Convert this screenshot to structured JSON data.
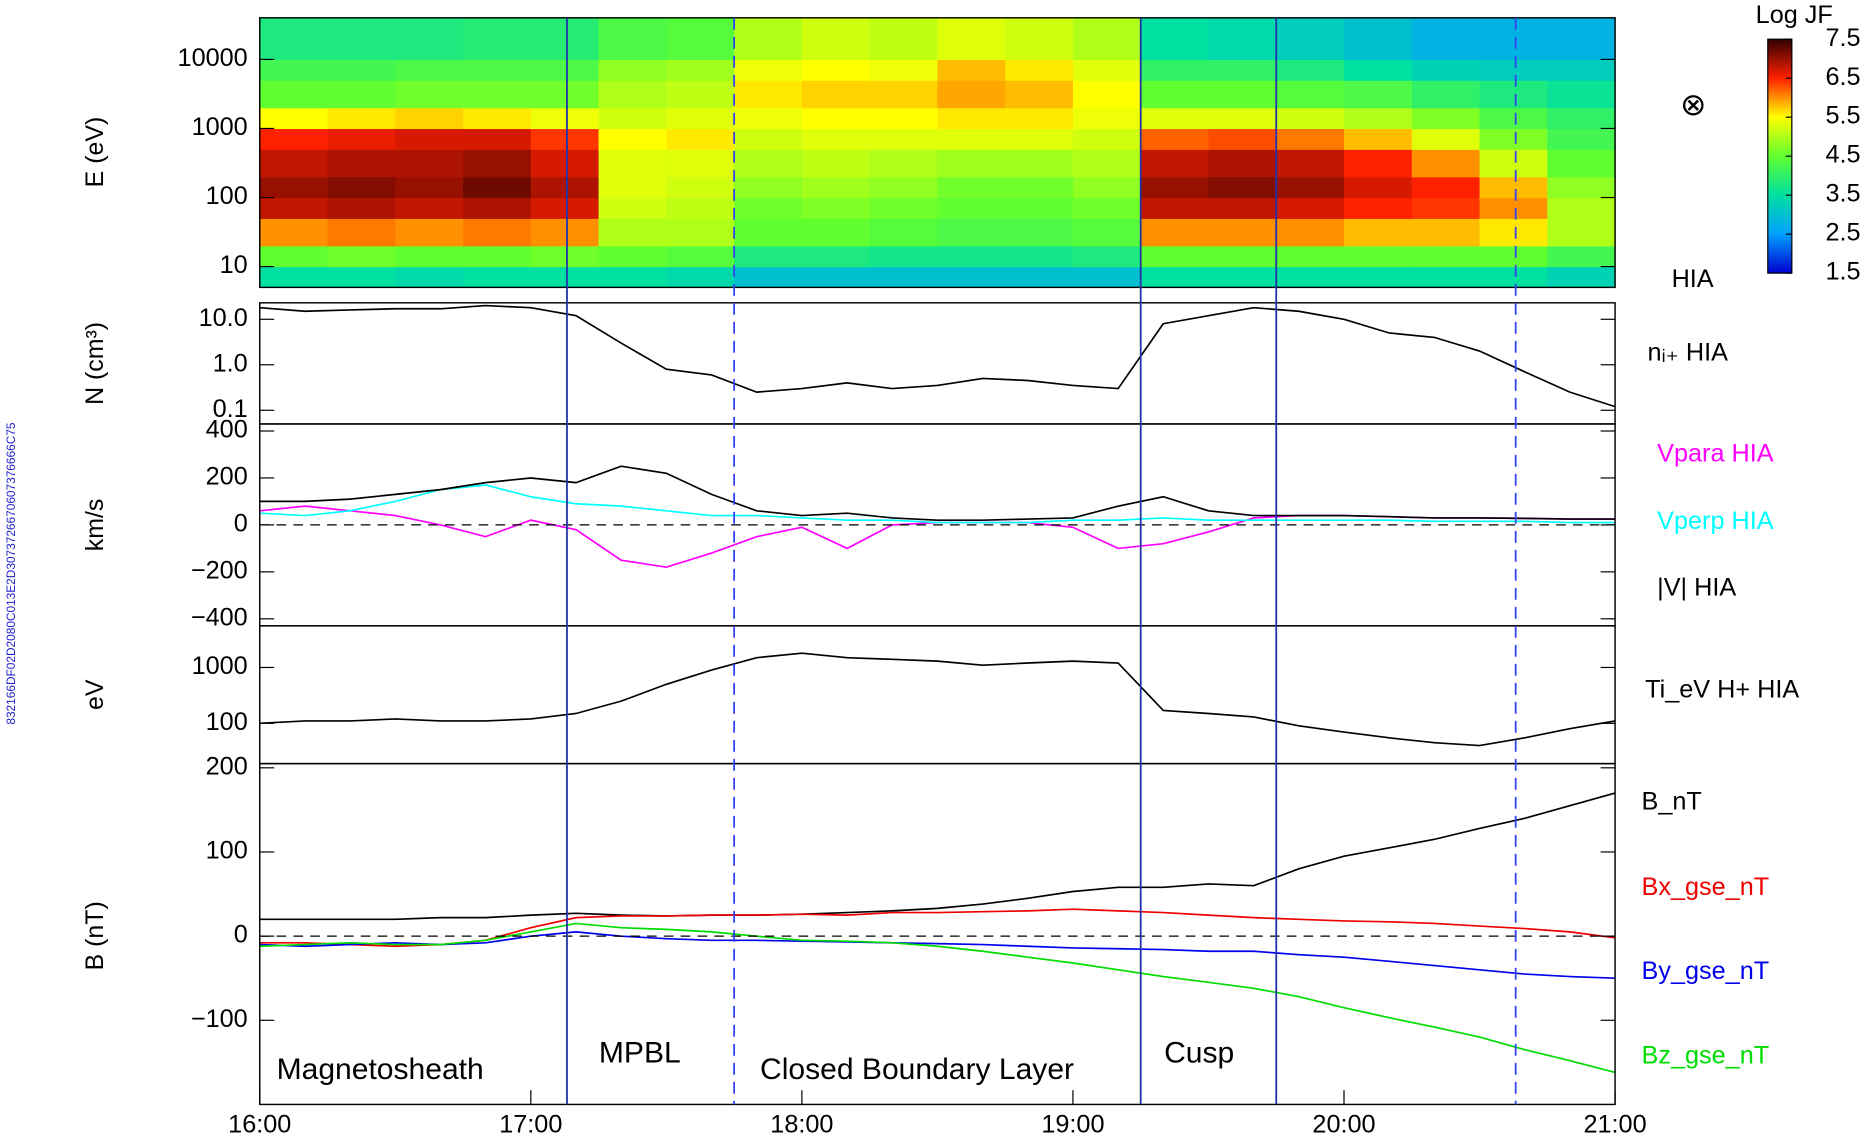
{
  "id_label": "832166DF02D2080C013E2D3073726670607376666C75",
  "boundaries": [
    {
      "time": "17:08",
      "style": "solid",
      "color": "#2233aa"
    },
    {
      "time": "17:45",
      "style": "dashed",
      "color": "#3344ee"
    },
    {
      "time": "19:15",
      "style": "solid",
      "color": "#2233aa"
    },
    {
      "time": "19:45",
      "style": "solid",
      "color": "#2233aa"
    },
    {
      "time": "20:38",
      "style": "dashed",
      "color": "#3344ee"
    }
  ],
  "annotations": [
    "Magnetosheath",
    "MPBL",
    "Closed Boundary Layer",
    "Cusp"
  ],
  "chart_data": [
    {
      "type": "spectrogram",
      "ylabel": "E (eV)",
      "instrument": "HIA",
      "symbol": "⊗",
      "ylog": true,
      "ylim": [
        5,
        40000
      ],
      "yticks": [
        10,
        100,
        1000,
        10000
      ],
      "xlim": [
        "16:00",
        "21:00"
      ],
      "time_bins": [
        "16:00",
        "16:15",
        "16:30",
        "16:45",
        "17:00",
        "17:15",
        "17:30",
        "17:45",
        "18:00",
        "18:15",
        "18:30",
        "18:45",
        "19:00",
        "19:15",
        "19:30",
        "19:45",
        "20:00",
        "20:15",
        "20:30",
        "20:45",
        "21:00"
      ],
      "energy_bins": [
        5,
        10,
        20,
        50,
        100,
        200,
        500,
        1000,
        2000,
        5000,
        10000,
        40000
      ],
      "z": [
        [
          3.5,
          4.5,
          6.0,
          6.8,
          7.0,
          6.8,
          6.5,
          5.5,
          4.5,
          4.2,
          3.8
        ],
        [
          3.5,
          4.6,
          6.1,
          6.9,
          7.1,
          6.9,
          6.6,
          5.6,
          4.5,
          4.2,
          3.8
        ],
        [
          3.4,
          4.5,
          6.0,
          6.8,
          7.0,
          6.9,
          6.7,
          5.7,
          4.6,
          4.3,
          3.8
        ],
        [
          3.5,
          4.5,
          6.1,
          6.9,
          7.2,
          7.0,
          6.7,
          5.6,
          4.6,
          4.3,
          3.9
        ],
        [
          3.5,
          4.6,
          6.0,
          6.7,
          6.9,
          6.7,
          6.4,
          5.4,
          4.6,
          4.3,
          3.9
        ],
        [
          3.5,
          4.5,
          5.0,
          5.2,
          5.3,
          5.3,
          5.5,
          5.2,
          5.0,
          4.8,
          4.3
        ],
        [
          3.4,
          4.4,
          5.0,
          5.1,
          5.2,
          5.3,
          5.6,
          5.3,
          5.1,
          4.9,
          4.4
        ],
        [
          3.0,
          3.8,
          4.5,
          4.6,
          4.8,
          5.0,
          5.2,
          5.4,
          5.6,
          5.4,
          5.0
        ],
        [
          3.0,
          3.8,
          4.5,
          4.7,
          4.9,
          5.1,
          5.3,
          5.5,
          5.7,
          5.5,
          5.2
        ],
        [
          3.0,
          3.7,
          4.4,
          4.6,
          4.8,
          5.0,
          5.3,
          5.5,
          5.7,
          5.4,
          5.1
        ],
        [
          3.0,
          3.7,
          4.3,
          4.5,
          4.6,
          4.9,
          5.3,
          5.6,
          5.9,
          5.8,
          5.3
        ],
        [
          3.0,
          3.7,
          4.3,
          4.5,
          4.6,
          4.9,
          5.3,
          5.6,
          5.8,
          5.6,
          5.2
        ],
        [
          3.0,
          3.8,
          4.4,
          4.6,
          4.8,
          5.0,
          5.2,
          5.4,
          5.5,
          5.3,
          5.0
        ],
        [
          3.5,
          4.5,
          6.0,
          6.8,
          7.0,
          6.8,
          6.2,
          5.3,
          4.5,
          4.0,
          3.5
        ],
        [
          3.5,
          4.5,
          6.0,
          6.8,
          7.1,
          6.9,
          6.3,
          5.3,
          4.5,
          4.0,
          3.4
        ],
        [
          3.5,
          4.5,
          6.0,
          6.7,
          7.0,
          6.8,
          6.1,
          5.2,
          4.4,
          3.8,
          3.2
        ],
        [
          3.5,
          4.5,
          5.8,
          6.5,
          6.7,
          6.5,
          5.8,
          5.0,
          4.3,
          3.5,
          3.0
        ],
        [
          3.5,
          4.5,
          5.8,
          6.4,
          6.5,
          6.0,
          5.3,
          4.7,
          4.0,
          3.3,
          2.8
        ],
        [
          3.5,
          4.5,
          5.6,
          6.0,
          5.8,
          5.2,
          4.7,
          4.3,
          3.8,
          3.2,
          2.8
        ],
        [
          3.3,
          4.2,
          5.0,
          5.0,
          4.8,
          4.5,
          4.2,
          4.0,
          3.6,
          3.2,
          2.8
        ]
      ],
      "colorbar": {
        "label": "Log JF",
        "lim": [
          1.5,
          7.5
        ],
        "ticks": [
          1.5,
          2.5,
          3.5,
          4.5,
          5.5,
          6.5,
          7.5
        ],
        "colors": [
          "#0000d0",
          "#00a0ff",
          "#00e0a0",
          "#60ff30",
          "#ffff00",
          "#ff2000",
          "#300000"
        ]
      }
    },
    {
      "type": "line",
      "ylabel": "N (cm³)",
      "ylog": true,
      "ylim": [
        0.05,
        23
      ],
      "yticks": [
        0.1,
        {
          "value": 1,
          "label": "1.0"
        },
        {
          "value": 10,
          "label": "10.0"
        }
      ],
      "xlim": [
        "16:00",
        "21:00"
      ],
      "x": [
        "16:00",
        "16:10",
        "16:20",
        "16:30",
        "16:40",
        "16:50",
        "17:00",
        "17:10",
        "17:20",
        "17:30",
        "17:40",
        "17:50",
        "18:00",
        "18:10",
        "18:20",
        "18:30",
        "18:40",
        "18:50",
        "19:00",
        "19:10",
        "19:20",
        "19:30",
        "19:40",
        "19:50",
        "20:00",
        "20:10",
        "20:20",
        "20:30",
        "20:40",
        "20:50",
        "21:00"
      ],
      "series": [
        {
          "name": "nᵢ₊ HIA",
          "color": "#000000",
          "values": [
            18,
            15,
            16,
            17,
            17,
            20,
            18,
            12,
            3,
            0.8,
            0.6,
            0.25,
            0.3,
            0.4,
            0.3,
            0.35,
            0.5,
            0.45,
            0.35,
            0.3,
            8,
            12,
            18,
            15,
            10,
            5,
            4,
            2,
            0.7,
            0.25,
            0.12
          ]
        }
      ]
    },
    {
      "type": "line",
      "ylabel": "km/s",
      "ylim": [
        -430,
        430
      ],
      "zero_line": true,
      "yticks": [
        {
          "value": -400,
          "label": "−400"
        },
        {
          "value": -200,
          "label": "−200"
        },
        0,
        200,
        400
      ],
      "xlim": [
        "16:00",
        "21:00"
      ],
      "x": [
        "16:00",
        "16:10",
        "16:20",
        "16:30",
        "16:40",
        "16:50",
        "17:00",
        "17:10",
        "17:20",
        "17:30",
        "17:40",
        "17:50",
        "18:00",
        "18:10",
        "18:20",
        "18:30",
        "18:40",
        "18:50",
        "19:00",
        "19:10",
        "19:20",
        "19:30",
        "19:40",
        "19:50",
        "20:00",
        "20:10",
        "20:20",
        "20:30",
        "20:40",
        "20:50",
        "21:00"
      ],
      "series": [
        {
          "name": "Vpara HIA",
          "color": "#ff00ff",
          "values": [
            60,
            80,
            60,
            40,
            0,
            -50,
            20,
            -20,
            -150,
            -180,
            -120,
            -50,
            -10,
            -100,
            0,
            10,
            10,
            10,
            -10,
            -100,
            -80,
            -30,
            30,
            40,
            40,
            35,
            30,
            30,
            28,
            25,
            25
          ]
        },
        {
          "name": "Vperp HIA",
          "color": "#00ffff",
          "values": [
            50,
            40,
            60,
            100,
            150,
            170,
            120,
            90,
            80,
            60,
            40,
            40,
            30,
            20,
            20,
            10,
            10,
            10,
            20,
            20,
            30,
            20,
            20,
            20,
            20,
            20,
            15,
            15,
            15,
            10,
            10
          ]
        },
        {
          "name": "|V| HIA",
          "color": "#000000",
          "values": [
            100,
            100,
            110,
            130,
            150,
            180,
            200,
            180,
            250,
            220,
            130,
            60,
            40,
            50,
            30,
            20,
            20,
            25,
            30,
            80,
            120,
            60,
            40,
            40,
            40,
            35,
            30,
            30,
            28,
            25,
            25
          ]
        }
      ]
    },
    {
      "type": "line",
      "ylabel": "eV",
      "ylog": true,
      "ylim": [
        19,
        5560
      ],
      "yticks": [
        100,
        1000
      ],
      "xlim": [
        "16:00",
        "21:00"
      ],
      "x": [
        "16:00",
        "16:10",
        "16:20",
        "16:30",
        "16:40",
        "16:50",
        "17:00",
        "17:10",
        "17:20",
        "17:30",
        "17:40",
        "17:50",
        "18:00",
        "18:10",
        "18:20",
        "18:30",
        "18:40",
        "18:50",
        "19:00",
        "19:10",
        "19:20",
        "19:30",
        "19:40",
        "19:50",
        "20:00",
        "20:10",
        "20:20",
        "20:30",
        "20:40",
        "20:50",
        "21:00"
      ],
      "series": [
        {
          "name": "Ti_eV   H+ HIA",
          "color": "#000000",
          "values": [
            100,
            110,
            110,
            120,
            110,
            110,
            120,
            150,
            250,
            500,
            900,
            1500,
            1800,
            1500,
            1400,
            1300,
            1100,
            1200,
            1300,
            1200,
            170,
            150,
            130,
            90,
            70,
            55,
            45,
            40,
            55,
            80,
            110
          ]
        }
      ]
    },
    {
      "type": "line",
      "ylabel": "B (nT)",
      "ylim": [
        -200,
        205
      ],
      "zero_line": true,
      "yticks": [
        {
          "value": -100,
          "label": "−100"
        },
        0,
        100,
        200
      ],
      "xlim": [
        "16:00",
        "21:00"
      ],
      "xticks": [
        "16:00",
        "17:00",
        "18:00",
        "19:00",
        "20:00",
        "21:00"
      ],
      "x": [
        "16:00",
        "16:10",
        "16:20",
        "16:30",
        "16:40",
        "16:50",
        "17:00",
        "17:10",
        "17:20",
        "17:30",
        "17:40",
        "17:50",
        "18:00",
        "18:10",
        "18:20",
        "18:30",
        "18:40",
        "18:50",
        "19:00",
        "19:10",
        "19:20",
        "19:30",
        "19:40",
        "19:50",
        "20:00",
        "20:10",
        "20:20",
        "20:30",
        "20:40",
        "20:50",
        "21:00"
      ],
      "series": [
        {
          "name": "B_nT",
          "color": "#000000",
          "values": [
            20,
            20,
            20,
            20,
            22,
            22,
            25,
            27,
            25,
            24,
            25,
            25,
            26,
            28,
            30,
            33,
            38,
            45,
            53,
            58,
            58,
            62,
            60,
            80,
            95,
            105,
            115,
            128,
            140,
            155,
            170
          ]
        },
        {
          "name": "Bx_gse_nT",
          "color": "#ee0000",
          "values": [
            -8,
            -8,
            -10,
            -12,
            -10,
            -5,
            10,
            22,
            24,
            24,
            25,
            25,
            26,
            25,
            28,
            28,
            29,
            30,
            32,
            30,
            28,
            25,
            22,
            20,
            18,
            17,
            15,
            12,
            9,
            5,
            -2
          ]
        },
        {
          "name": "By_gse_nT",
          "color": "#0000ee",
          "values": [
            -10,
            -12,
            -10,
            -8,
            -10,
            -8,
            0,
            5,
            0,
            -3,
            -5,
            -5,
            -6,
            -7,
            -8,
            -9,
            -10,
            -12,
            -14,
            -15,
            -16,
            -18,
            -18,
            -22,
            -25,
            -30,
            -35,
            -40,
            -45,
            -48,
            -50
          ]
        },
        {
          "name": "Bz_gse_nT",
          "color": "#00dd00",
          "values": [
            -12,
            -10,
            -8,
            -10,
            -10,
            -5,
            5,
            15,
            10,
            8,
            5,
            0,
            -5,
            -6,
            -8,
            -12,
            -18,
            -25,
            -32,
            -40,
            -48,
            -55,
            -62,
            -72,
            -85,
            -97,
            -108,
            -120,
            -135,
            -148,
            -162
          ]
        }
      ]
    }
  ]
}
